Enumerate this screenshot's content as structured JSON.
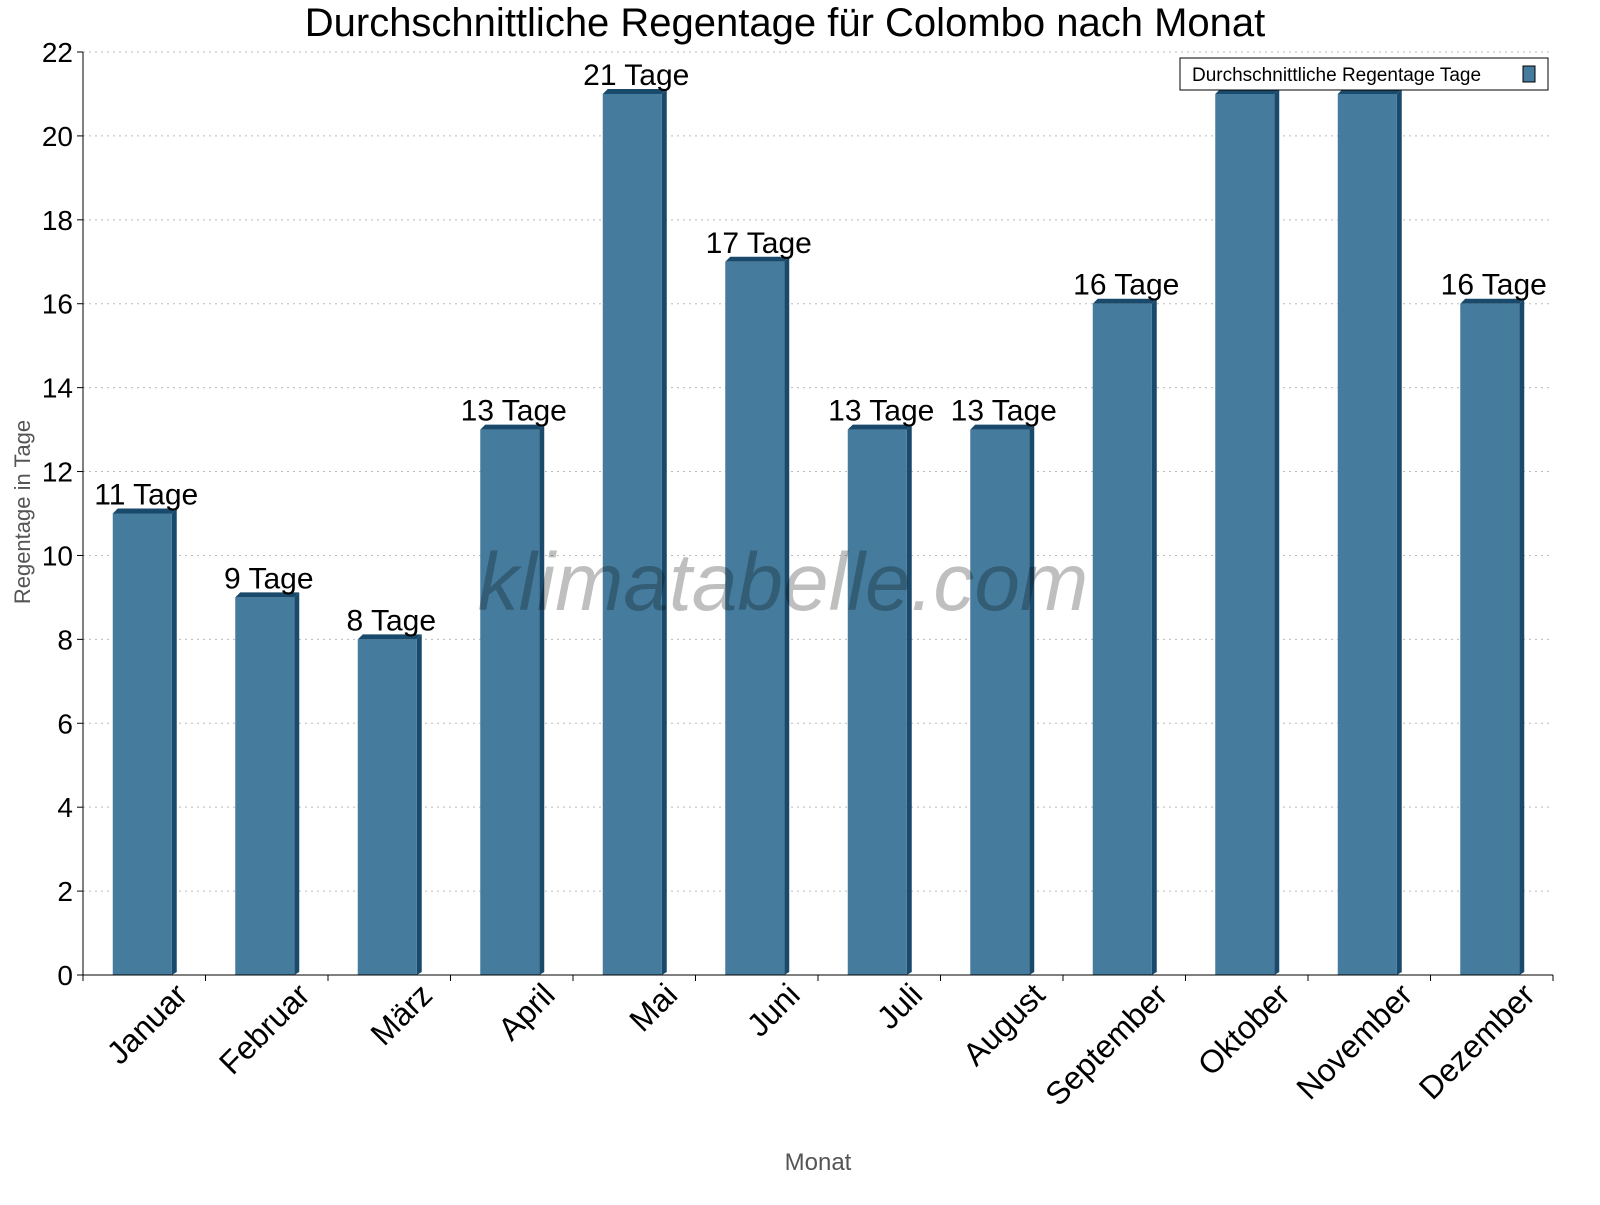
{
  "chart_data": {
    "type": "bar",
    "title": "Durchschnittliche Regentage für Colombo nach Monat",
    "xlabel": "Monat",
    "ylabel": "Regentage in Tage",
    "ylim": [
      0,
      22
    ],
    "yticks": [
      0,
      2,
      4,
      6,
      8,
      10,
      12,
      14,
      16,
      18,
      20,
      22
    ],
    "grid": "horizontal dotted",
    "categories": [
      "Januar",
      "Februar",
      "März",
      "April",
      "Mai",
      "Juni",
      "Juli",
      "August",
      "September",
      "Oktober",
      "November",
      "Dezember"
    ],
    "series": [
      {
        "name": "Durchschnittliche Regentage Tage",
        "values": [
          11,
          9,
          8,
          13,
          21,
          17,
          13,
          13,
          16,
          21,
          21,
          16
        ],
        "data_labels": [
          "11 Tage",
          "9 Tage",
          "8 Tage",
          "13 Tage",
          "21 Tage",
          "17 Tage",
          "13 Tage",
          "13 Tage",
          "16 Tage",
          "",
          "",
          "16 Tage"
        ],
        "color": "#457b9d",
        "side_color": "#1a4a6b"
      }
    ],
    "legend_position": "top-right",
    "watermark": "klimatabelle.com"
  }
}
